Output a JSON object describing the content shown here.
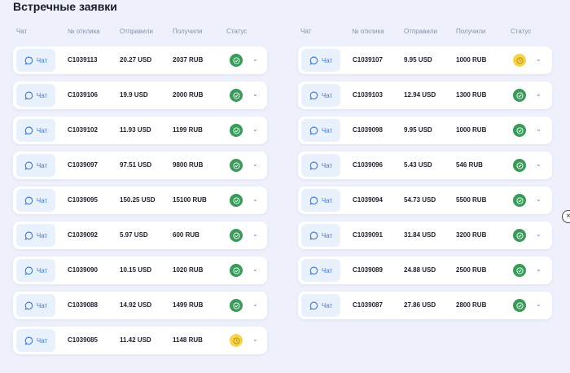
{
  "title": "Встречные заявки",
  "headers": [
    "Чат",
    "№ отклика",
    "Отправили",
    "Получили",
    "Статус"
  ],
  "chat_label": "Чат",
  "colors": {
    "done": "#3a9a5a",
    "pending": "#f3d44a",
    "accent": "#3d7bd8"
  },
  "left": [
    {
      "id": "C1039113",
      "sent": "20.27 USD",
      "received": "2037 RUB",
      "status": "done"
    },
    {
      "id": "C1039106",
      "sent": "19.9 USD",
      "received": "2000 RUB",
      "status": "done"
    },
    {
      "id": "C1039102",
      "sent": "11.93 USD",
      "received": "1199 RUB",
      "status": "done"
    },
    {
      "id": "C1039097",
      "sent": "97.51 USD",
      "received": "9800 RUB",
      "status": "done"
    },
    {
      "id": "C1039095",
      "sent": "150.25 USD",
      "received": "15100 RUB",
      "status": "done"
    },
    {
      "id": "C1039092",
      "sent": "5.97 USD",
      "received": "600 RUB",
      "status": "done"
    },
    {
      "id": "C1039090",
      "sent": "10.15 USD",
      "received": "1020 RUB",
      "status": "done"
    },
    {
      "id": "C1039088",
      "sent": "14.92 USD",
      "received": "1499 RUB",
      "status": "done"
    },
    {
      "id": "C1039085",
      "sent": "11.42 USD",
      "received": "1148 RUB",
      "status": "pending"
    }
  ],
  "right": [
    {
      "id": "C1039107",
      "sent": "9.95 USD",
      "received": "1000 RUB",
      "status": "pending"
    },
    {
      "id": "C1039103",
      "sent": "12.94 USD",
      "received": "1300 RUB",
      "status": "done"
    },
    {
      "id": "C1039098",
      "sent": "9.95 USD",
      "received": "1000 RUB",
      "status": "done"
    },
    {
      "id": "C1039096",
      "sent": "5.43 USD",
      "received": "546 RUB",
      "status": "done"
    },
    {
      "id": "C1039094",
      "sent": "54.73 USD",
      "received": "5500 RUB",
      "status": "done"
    },
    {
      "id": "C1039091",
      "sent": "31.84 USD",
      "received": "3200 RUB",
      "status": "done"
    },
    {
      "id": "C1039089",
      "sent": "24.88 USD",
      "received": "2500 RUB",
      "status": "done"
    },
    {
      "id": "C1039087",
      "sent": "27.86 USD",
      "received": "2800 RUB",
      "status": "done"
    }
  ]
}
